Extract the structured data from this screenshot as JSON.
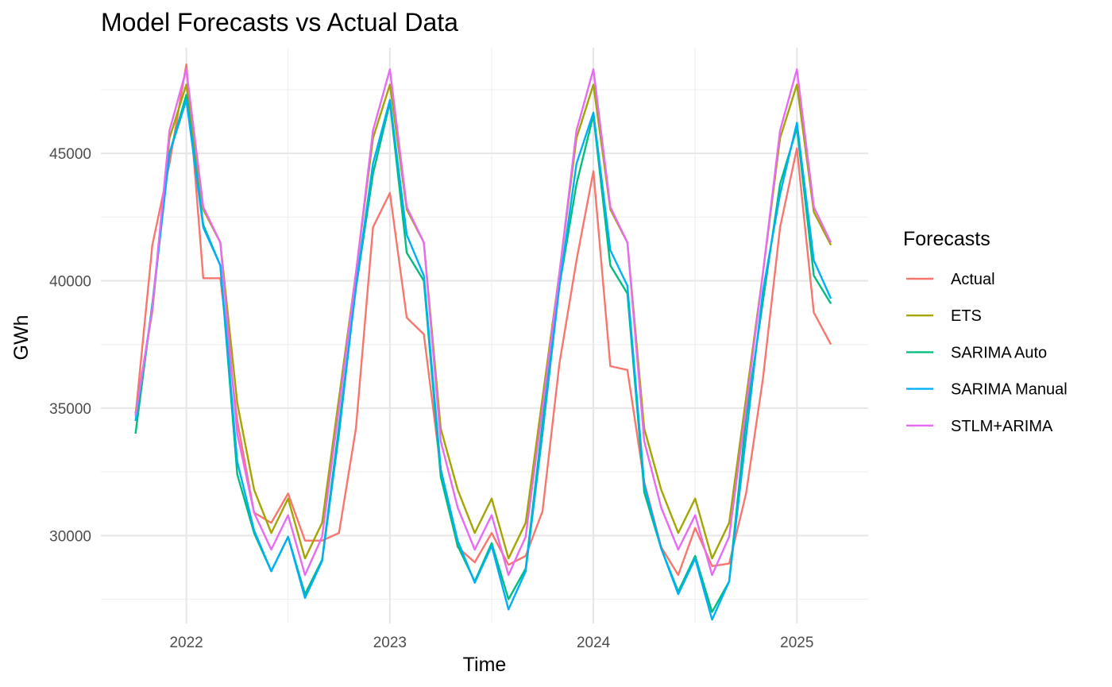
{
  "chart_data": {
    "type": "line",
    "title": "Model Forecasts vs Actual Data",
    "xlabel": "Time",
    "ylabel": "GWh",
    "legend_title": "Forecasts",
    "legend_position": "right",
    "grid": true,
    "xlim": [
      2021.58,
      2025.35
    ],
    "ylim": [
      26550,
      49150
    ],
    "x_ticks": [
      2022,
      2023,
      2024,
      2025
    ],
    "x_tick_labels": [
      "2022",
      "2023",
      "2024",
      "2025"
    ],
    "y_ticks": [
      30000,
      35000,
      40000,
      45000
    ],
    "y_tick_labels": [
      "30000",
      "35000",
      "40000",
      "45000"
    ],
    "x": [
      2021.75,
      2021.833,
      2021.917,
      2022.0,
      2022.083,
      2022.167,
      2022.25,
      2022.333,
      2022.417,
      2022.5,
      2022.583,
      2022.667,
      2022.75,
      2022.833,
      2022.917,
      2023.0,
      2023.083,
      2023.167,
      2023.25,
      2023.333,
      2023.417,
      2023.5,
      2023.583,
      2023.667,
      2023.75,
      2023.833,
      2023.917,
      2024.0,
      2024.083,
      2024.167,
      2024.25,
      2024.333,
      2024.417,
      2024.5,
      2024.583,
      2024.667,
      2024.75,
      2024.833,
      2024.917,
      2025.0,
      2025.083,
      2025.167
    ],
    "series": [
      {
        "name": "Actual",
        "color": "#F8766D",
        "values": [
          34700,
          41400,
          44600,
          48500,
          40100,
          40100,
          34500,
          30900,
          30500,
          31650,
          29800,
          29800,
          30100,
          34200,
          42100,
          43450,
          38550,
          37900,
          32600,
          29550,
          28950,
          30100,
          28850,
          29200,
          30950,
          36750,
          40800,
          44300,
          36650,
          36500,
          32100,
          29550,
          28450,
          30300,
          28800,
          28900,
          31650,
          36150,
          42100,
          45200,
          38750,
          37500
        ]
      },
      {
        "name": "ETS",
        "color": "#A3A500",
        "values": [
          34800,
          38800,
          45600,
          47700,
          42800,
          41500,
          35200,
          31800,
          30100,
          31450,
          29100,
          30500,
          35400,
          40300,
          45600,
          47700,
          42800,
          41500,
          34200,
          31800,
          30100,
          31450,
          29100,
          30500,
          35400,
          40300,
          45600,
          47700,
          42800,
          41500,
          34200,
          31800,
          30100,
          31450,
          29100,
          30500,
          35400,
          40300,
          45600,
          47700,
          42700,
          41400
        ]
      },
      {
        "name": "SARIMA Auto",
        "color": "#00BF7D",
        "values": [
          34000,
          39100,
          45000,
          47300,
          42200,
          40600,
          32400,
          30100,
          28600,
          29950,
          27700,
          29050,
          34300,
          39700,
          44200,
          47000,
          41100,
          40000,
          32300,
          29600,
          28200,
          29700,
          27500,
          28700,
          34400,
          39800,
          43800,
          46500,
          40600,
          39500,
          31700,
          29500,
          27800,
          29200,
          27000,
          28200,
          34600,
          39200,
          43800,
          46000,
          40200,
          39100
        ]
      },
      {
        "name": "SARIMA Manual",
        "color": "#00B0F6",
        "values": [
          34500,
          39000,
          45000,
          47100,
          42100,
          40600,
          32900,
          30200,
          28600,
          29950,
          27550,
          29000,
          34000,
          39800,
          44600,
          47100,
          41800,
          40200,
          32600,
          29800,
          28150,
          29600,
          27100,
          28600,
          34000,
          39800,
          44600,
          46600,
          41200,
          39800,
          32000,
          29500,
          27700,
          29100,
          26700,
          28200,
          33900,
          39600,
          43400,
          46200,
          40800,
          39300
        ]
      },
      {
        "name": "STLM+ARIMA",
        "color": "#E76BF3",
        "values": [
          34700,
          38900,
          45900,
          48300,
          42900,
          41500,
          34000,
          30900,
          29450,
          30800,
          28450,
          29950,
          35000,
          40300,
          45900,
          48300,
          42900,
          41500,
          33700,
          31100,
          29450,
          30800,
          28450,
          29950,
          35000,
          40300,
          45900,
          48300,
          42900,
          41500,
          33700,
          31100,
          29450,
          30800,
          28450,
          29950,
          35000,
          40300,
          45900,
          48300,
          42900,
          41500
        ]
      }
    ]
  }
}
